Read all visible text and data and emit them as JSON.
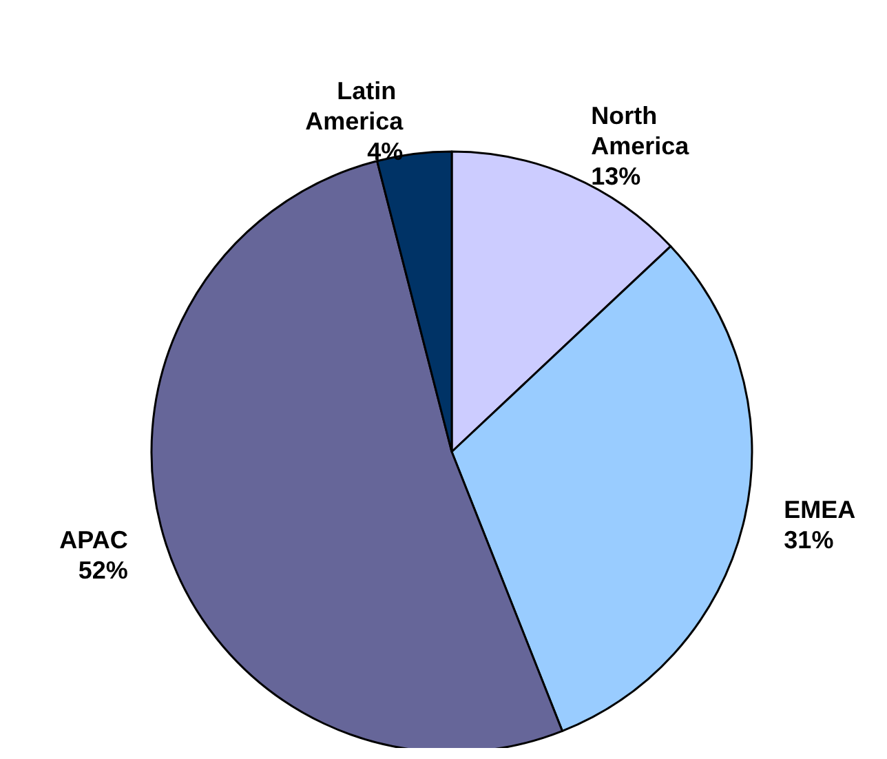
{
  "chart_data": {
    "type": "pie",
    "categories": [
      "North America",
      "EMEA",
      "APAC",
      "Latin America"
    ],
    "values": [
      13,
      31,
      52,
      4
    ],
    "colors": [
      "#ccccff",
      "#99ccff",
      "#666699",
      "#003366"
    ],
    "value_labels": [
      "13%",
      "31%",
      "52%",
      "4%"
    ],
    "legend": false
  }
}
